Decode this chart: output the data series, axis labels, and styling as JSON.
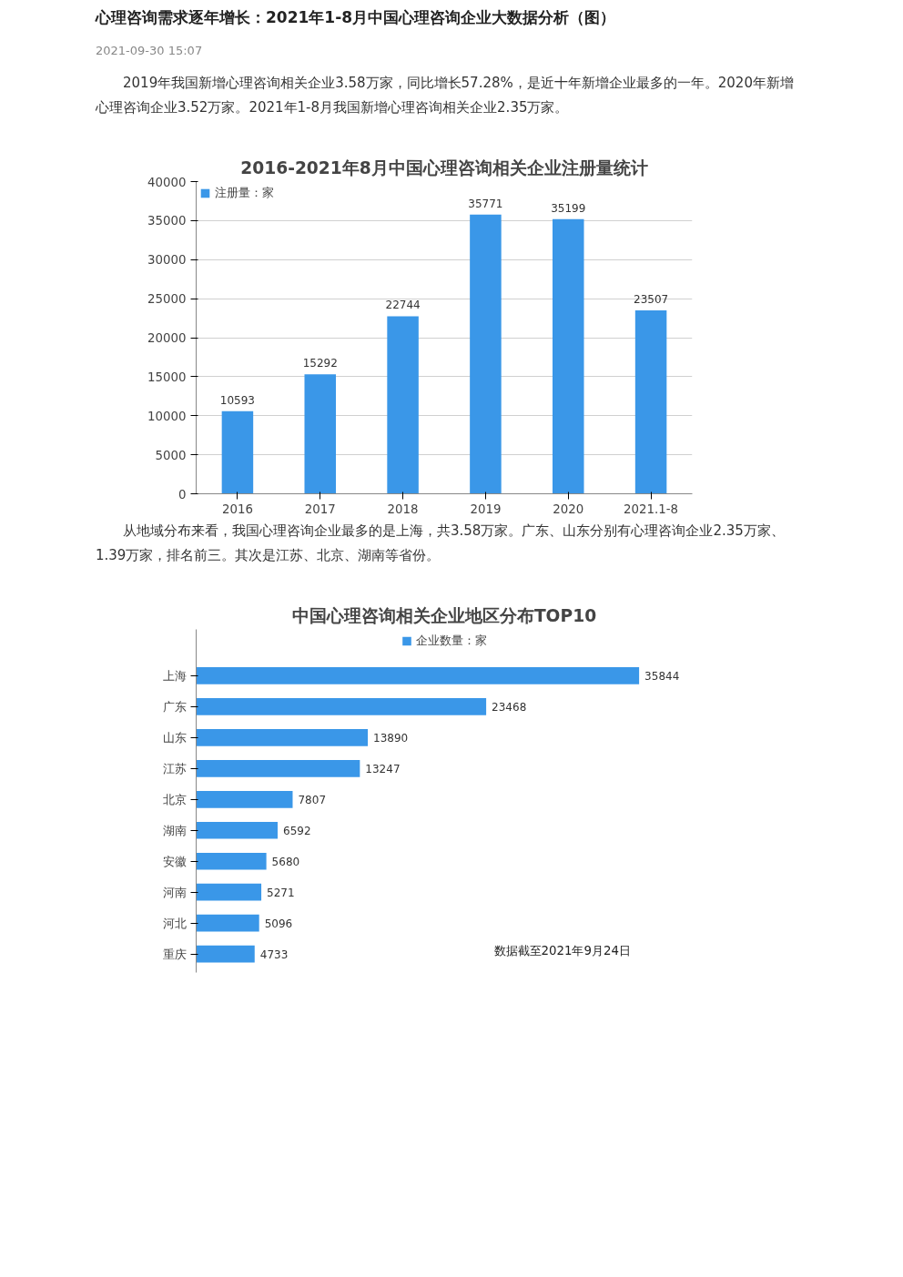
{
  "chart_data": [
    {
      "type": "bar",
      "title": "2016-2021年8月中国心理咨询相关企业注册量统计",
      "annotations": [
        "心理咨询需求逐年增长：2021年1-8月中国心理咨询企业大数据分析（图）",
        "2021-09-30 15:07",
        "2019年我国新增心理咨询相关企业3.58万家，同比增长57.28%，是近十年新增企业最多的一年。2020年新增心理咨询企业3.52万家。2021年1-8月我国新增心理咨询相关企业2.35万家。"
      ],
      "categories": [
        "2016",
        "2017",
        "2018",
        "2019",
        "2020",
        "2021.1-8"
      ],
      "series": [
        {
          "name": "注册量：家",
          "color": "#3a97e8",
          "values": [
            10593,
            15292,
            22744,
            35771,
            35199,
            23507
          ]
        }
      ],
      "ylim": [
        0,
        40000
      ],
      "yticks": [
        0,
        5000,
        10000,
        15000,
        20000,
        25000,
        30000,
        35000,
        40000
      ],
      "grid": "y",
      "legend": "top",
      "data_labels": true
    },
    {
      "type": "bar",
      "orientation": "horizontal",
      "title": "中国心理咨询相关企业地区分布TOP10",
      "annotations": [
        "从地域分布来看，我国心理咨询企业最多的是上海，共3.58万家。广东、山东分别有心理咨询企业2.35万家、1.39万家，排名前三。其次是江苏、北京、湖南等省份。",
        "数据截至2021年9月24日"
      ],
      "categories": [
        "上海",
        "广东",
        "山东",
        "江苏",
        "北京",
        "湖南",
        "安徽",
        "河南",
        "河北",
        "重庆"
      ],
      "series": [
        {
          "name": "企业数量：家",
          "color": "#3a97e8",
          "values": [
            35844,
            23468,
            13890,
            13247,
            7807,
            6592,
            5680,
            5271,
            5096,
            4733
          ]
        }
      ],
      "tick_labels": "y",
      "grid": false,
      "legend": "top",
      "data_labels": true
    }
  ]
}
